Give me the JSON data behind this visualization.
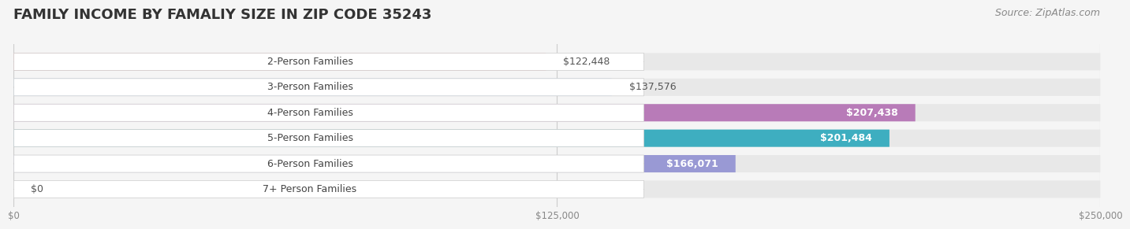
{
  "title": "FAMILY INCOME BY FAMALIY SIZE IN ZIP CODE 35243",
  "source": "Source: ZipAtlas.com",
  "categories": [
    "2-Person Families",
    "3-Person Families",
    "4-Person Families",
    "5-Person Families",
    "6-Person Families",
    "7+ Person Families"
  ],
  "values": [
    122448,
    137576,
    207438,
    201484,
    166071,
    0
  ],
  "bar_colors": [
    "#F08080",
    "#87BFEF",
    "#B87BB8",
    "#3EAEC0",
    "#9999D4",
    "#F4A0B8"
  ],
  "label_colors": [
    "#555555",
    "#555555",
    "#ffffff",
    "#ffffff",
    "#ffffff",
    "#555555"
  ],
  "xlim": [
    0,
    250000
  ],
  "xticks": [
    0,
    125000,
    250000
  ],
  "xtick_labels": [
    "$0",
    "$125,000",
    "$250,000"
  ],
  "bg_color": "#f5f5f5",
  "bar_bg_color": "#e8e8e8",
  "title_fontsize": 13,
  "label_fontsize": 9,
  "value_fontsize": 9,
  "source_fontsize": 9
}
